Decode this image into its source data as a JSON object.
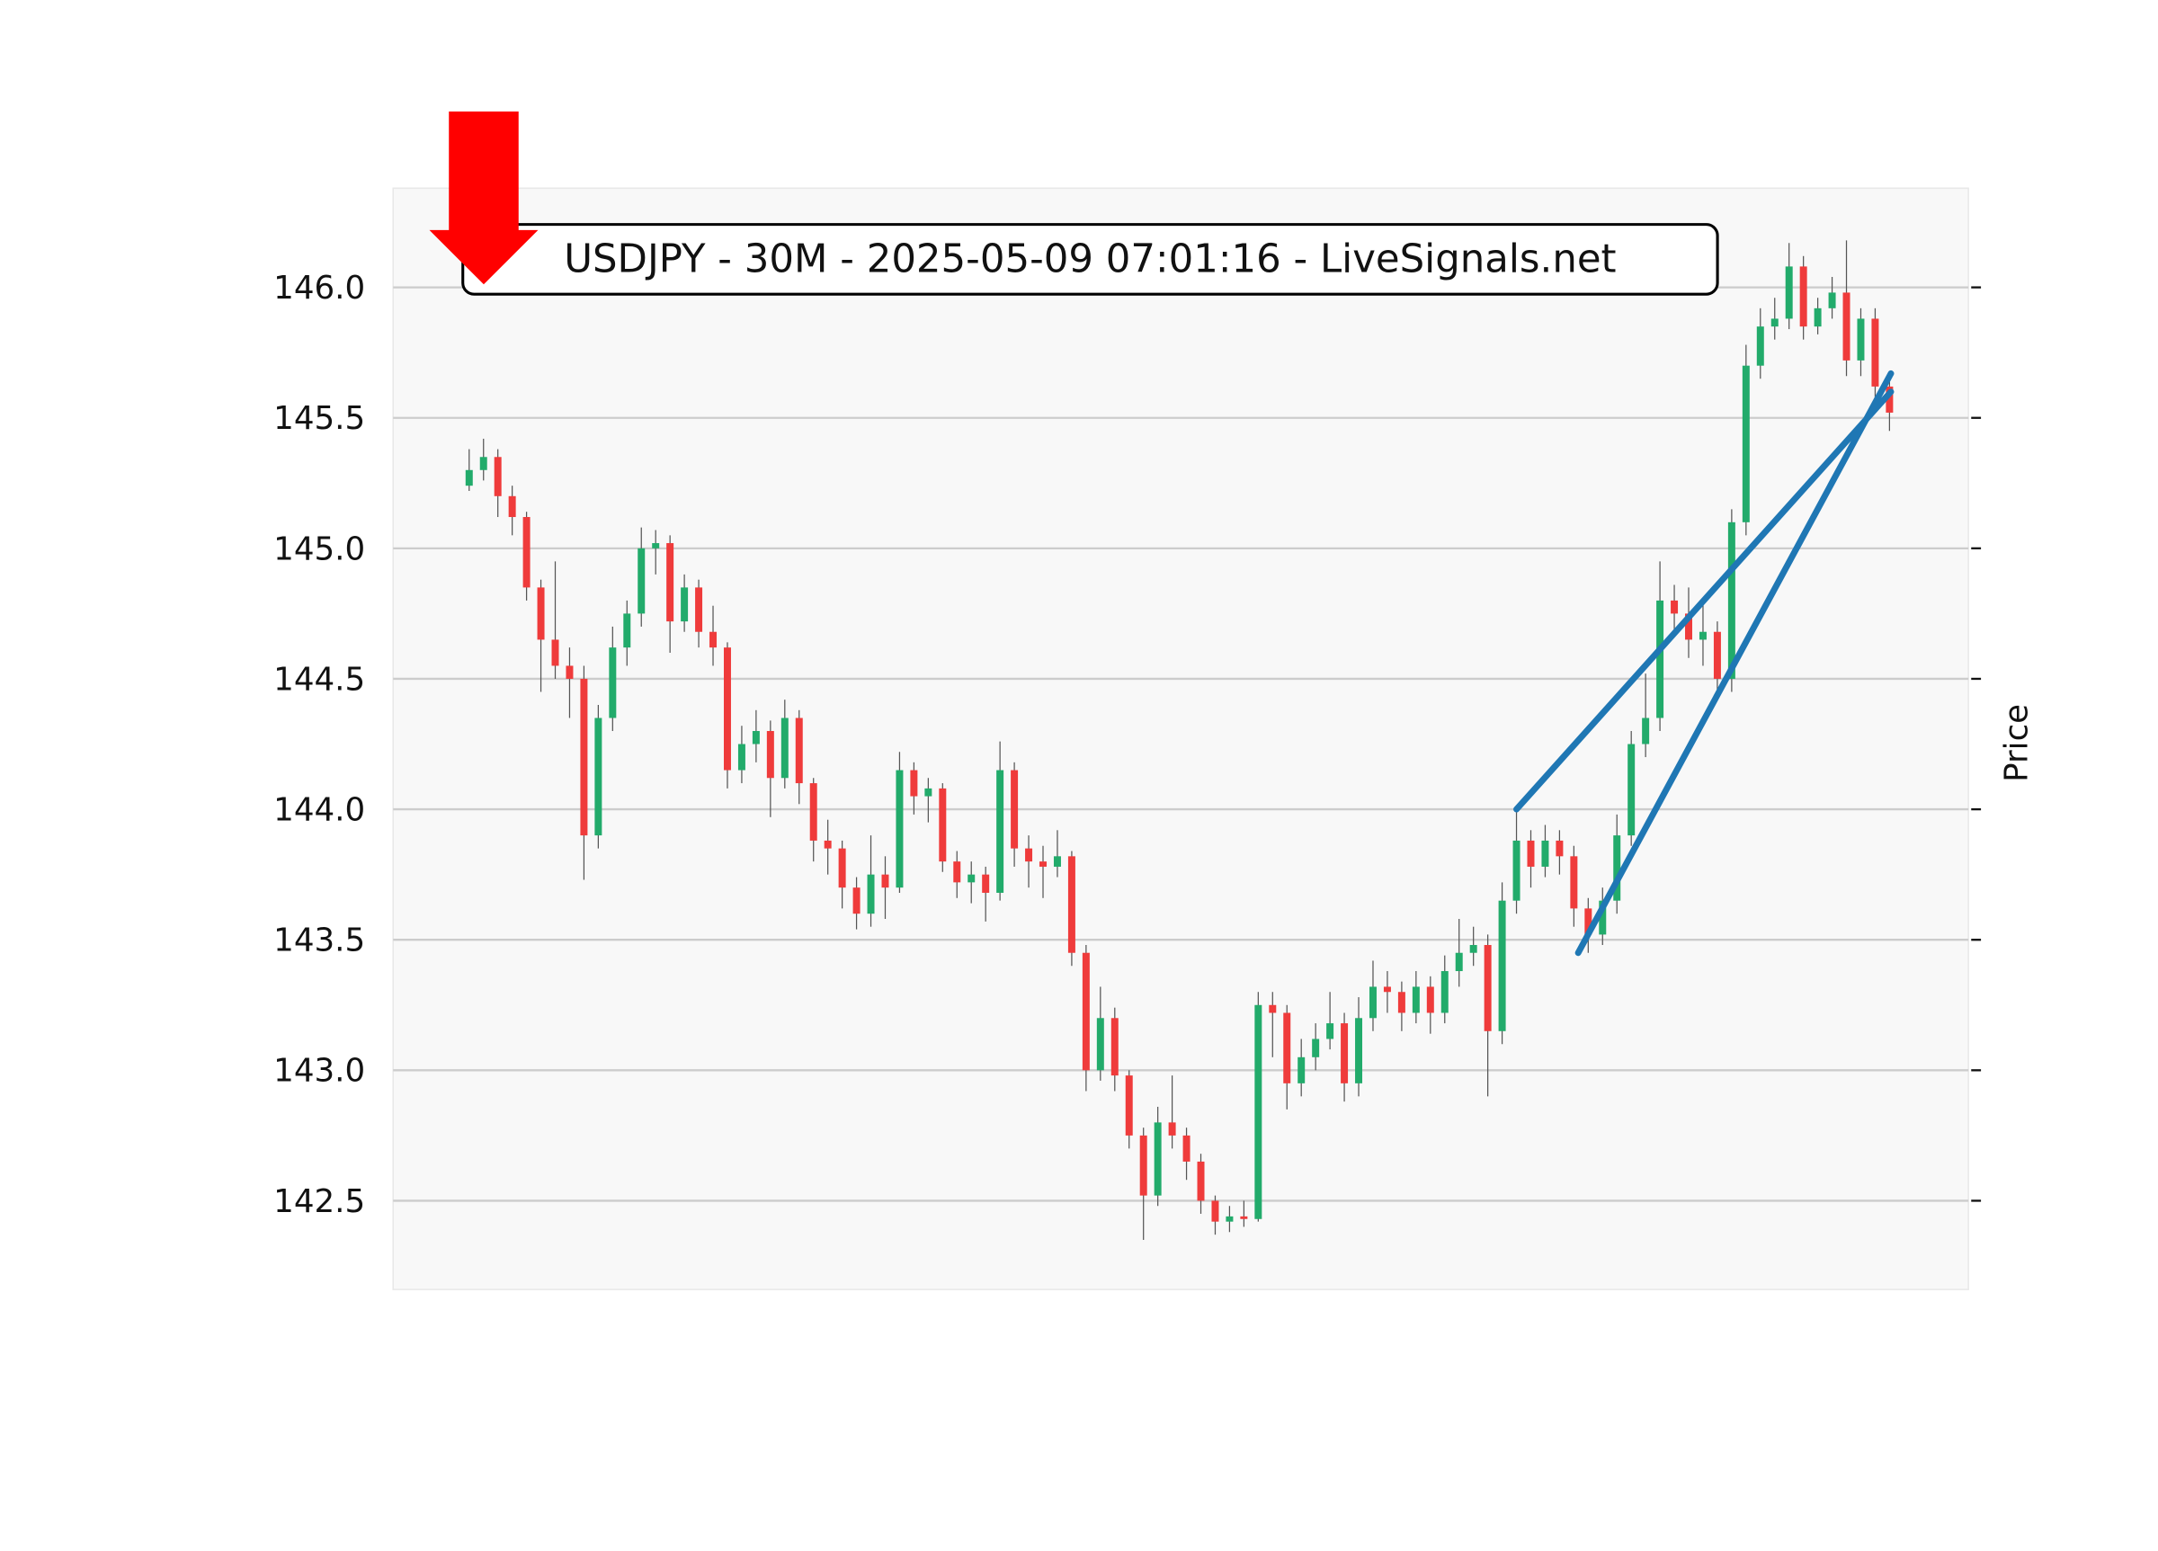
{
  "chart_data": {
    "type": "candlestick",
    "title": "USDJPY - 30M - 2025-05-09 07:01:16 - LiveSignals.net",
    "ylabel": "Price",
    "ylim": [
      142.16,
      146.38
    ],
    "xlim": [
      -5.3,
      104.5
    ],
    "yticks": [
      142.5,
      {
        "value": 143,
        "label": "143.0"
      },
      143.5,
      {
        "value": 144,
        "label": "144.0"
      },
      144.5,
      {
        "value": 145,
        "label": "145.0"
      },
      145.5,
      {
        "value": 146,
        "label": "146.0"
      }
    ],
    "grid": true,
    "colors": {
      "up": "#22ab6b",
      "down": "#ef3b3b",
      "trendline": "#1f77b4"
    },
    "open": [
      145.24,
      145.3,
      145.35,
      145.2,
      145.12,
      144.85,
      144.65,
      144.55,
      144.5,
      143.9,
      144.35,
      144.62,
      144.75,
      145.0,
      145.02,
      144.72,
      144.85,
      144.68,
      144.62,
      144.15,
      144.25,
      144.3,
      144.12,
      144.35,
      144.1,
      143.88,
      143.85,
      143.7,
      143.6,
      143.75,
      143.7,
      144.15,
      144.05,
      144.08,
      143.8,
      143.72,
      143.75,
      143.68,
      144.15,
      143.85,
      143.8,
      143.78,
      143.82,
      143.45,
      143.0,
      143.2,
      142.98,
      142.75,
      142.52,
      142.8,
      142.75,
      142.65,
      142.5,
      142.42,
      142.44,
      142.43,
      143.25,
      143.22,
      142.95,
      143.05,
      143.12,
      143.18,
      142.95,
      143.2,
      143.32,
      143.3,
      143.22,
      143.32,
      143.22,
      143.38,
      143.45,
      143.48,
      143.15,
      143.65,
      143.88,
      143.78,
      143.88,
      143.82,
      143.62,
      143.52,
      143.65,
      143.9,
      144.25,
      144.35,
      144.8,
      144.75,
      144.65,
      144.68,
      144.5,
      145.1,
      145.7,
      145.85,
      145.88,
      146.08,
      145.85,
      145.92,
      145.98,
      145.72,
      145.88,
      145.62
    ],
    "high": [
      145.38,
      145.42,
      145.38,
      145.24,
      145.14,
      144.88,
      144.95,
      144.62,
      144.55,
      144.4,
      144.7,
      144.8,
      145.08,
      145.07,
      145.05,
      144.9,
      144.88,
      144.78,
      144.64,
      144.32,
      144.38,
      144.34,
      144.42,
      144.38,
      144.12,
      143.96,
      143.88,
      143.74,
      143.9,
      143.82,
      144.22,
      144.18,
      144.12,
      144.1,
      143.84,
      143.8,
      143.78,
      144.26,
      144.18,
      143.9,
      143.86,
      143.92,
      143.84,
      143.48,
      143.32,
      143.24,
      143.0,
      142.78,
      142.86,
      142.98,
      142.78,
      142.68,
      142.52,
      142.48,
      142.5,
      143.3,
      143.3,
      143.25,
      143.12,
      143.18,
      143.3,
      143.22,
      143.28,
      143.42,
      143.38,
      143.34,
      143.38,
      143.36,
      143.44,
      143.58,
      143.55,
      143.52,
      143.72,
      144.0,
      143.92,
      143.94,
      143.92,
      143.86,
      143.66,
      143.7,
      143.98,
      144.3,
      144.52,
      144.95,
      144.86,
      144.85,
      144.8,
      144.72,
      145.15,
      145.78,
      145.92,
      145.96,
      146.17,
      146.12,
      145.96,
      146.04,
      146.18,
      145.92,
      145.92,
      145.65
    ],
    "low": [
      145.22,
      145.26,
      145.12,
      145.05,
      144.8,
      144.45,
      144.5,
      144.35,
      143.73,
      143.85,
      144.3,
      144.55,
      144.7,
      144.9,
      144.6,
      144.68,
      144.62,
      144.55,
      144.08,
      144.1,
      144.18,
      143.97,
      144.08,
      144.02,
      143.8,
      143.75,
      143.62,
      143.54,
      143.55,
      143.58,
      143.68,
      143.98,
      143.95,
      143.76,
      143.66,
      143.64,
      143.57,
      143.65,
      143.78,
      143.7,
      143.66,
      143.74,
      143.4,
      142.92,
      142.96,
      142.92,
      142.7,
      142.35,
      142.48,
      142.7,
      142.58,
      142.45,
      142.37,
      142.38,
      142.4,
      142.42,
      143.05,
      142.85,
      142.9,
      143.0,
      143.08,
      142.88,
      142.9,
      143.15,
      143.22,
      143.15,
      143.18,
      143.14,
      143.18,
      143.32,
      143.4,
      142.9,
      143.1,
      143.6,
      143.7,
      143.74,
      143.75,
      143.55,
      143.45,
      143.48,
      143.6,
      143.86,
      144.2,
      144.3,
      144.68,
      144.58,
      144.55,
      144.42,
      144.45,
      145.05,
      145.65,
      145.8,
      145.84,
      145.8,
      145.82,
      145.88,
      145.66,
      145.66,
      145.58,
      145.45
    ],
    "close": [
      145.3,
      145.35,
      145.2,
      145.12,
      144.85,
      144.65,
      144.55,
      144.5,
      143.9,
      144.35,
      144.62,
      144.75,
      145.0,
      145.02,
      144.72,
      144.85,
      144.68,
      144.62,
      144.15,
      144.25,
      144.3,
      144.12,
      144.35,
      144.1,
      143.88,
      143.85,
      143.7,
      143.6,
      143.75,
      143.7,
      144.15,
      144.05,
      144.08,
      143.8,
      143.72,
      143.75,
      143.68,
      144.15,
      143.85,
      143.8,
      143.78,
      143.82,
      143.45,
      143.0,
      143.2,
      142.98,
      142.75,
      142.52,
      142.8,
      142.75,
      142.65,
      142.5,
      142.42,
      142.44,
      142.43,
      143.25,
      143.22,
      142.95,
      143.05,
      143.12,
      143.18,
      142.95,
      143.2,
      143.32,
      143.3,
      143.22,
      143.32,
      143.22,
      143.38,
      143.45,
      143.48,
      143.15,
      143.65,
      143.88,
      143.78,
      143.88,
      143.82,
      143.62,
      143.52,
      143.65,
      143.9,
      144.25,
      144.35,
      144.8,
      144.75,
      144.65,
      144.68,
      144.5,
      145.1,
      145.7,
      145.85,
      145.88,
      146.08,
      145.85,
      145.92,
      145.98,
      145.72,
      145.88,
      145.62,
      145.52
    ],
    "trendlines": [
      {
        "x": [
          73,
          99.1
        ],
        "y": [
          144.0,
          145.6
        ]
      },
      {
        "x": [
          77.3,
          99.1
        ],
        "y": [
          143.45,
          145.67
        ]
      }
    ]
  }
}
